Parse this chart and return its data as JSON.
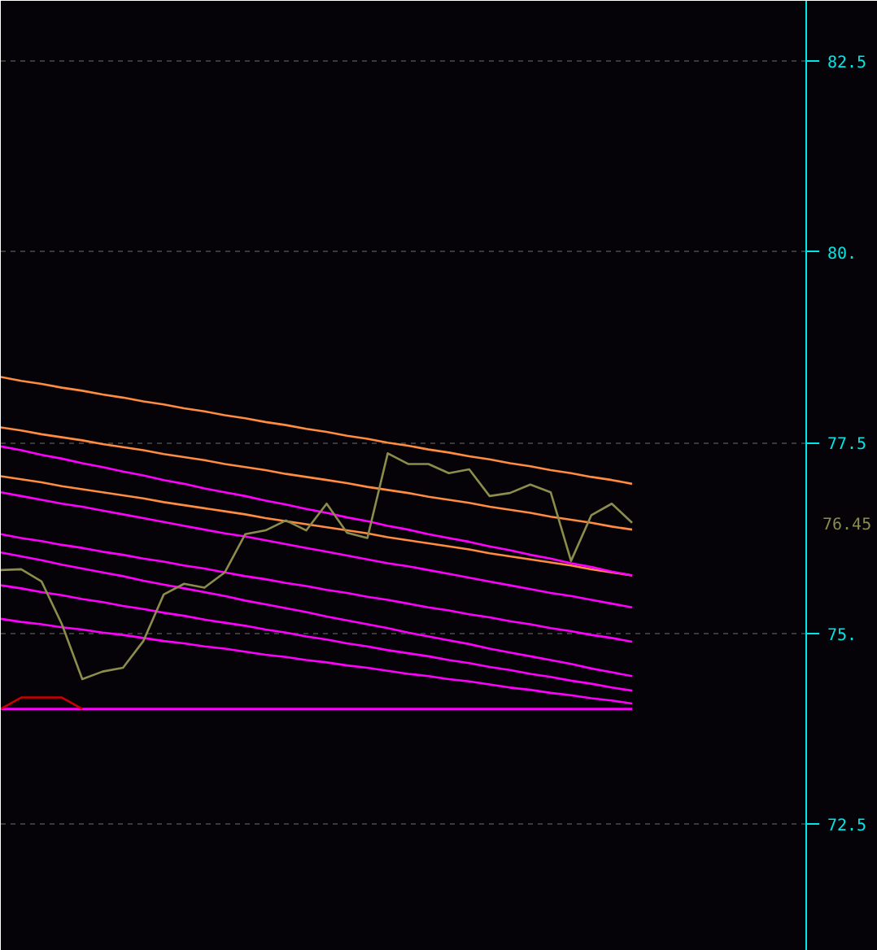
{
  "chart_data": {
    "type": "line",
    "categories": [
      null,
      null,
      null,
      null,
      null,
      null,
      null,
      null,
      null,
      null,
      null,
      null,
      null,
      null,
      null,
      null,
      null,
      null,
      null,
      null,
      null,
      null,
      null,
      null,
      null,
      null,
      null,
      null,
      null,
      null,
      null,
      null
    ],
    "ylim": [
      70.84,
      83.29
    ],
    "yticks": [
      72.5,
      {
        "value": 75,
        "label": "75."
      },
      77.5,
      {
        "value": 80,
        "label": "80."
      },
      82.5
    ],
    "tick_labels": "y",
    "grid": "y",
    "annotations": [
      "76.45"
    ],
    "series": [
      {
        "color": "#ff8c40",
        "values": [
          78.36,
          78.31,
          78.27,
          78.22,
          78.18,
          78.13,
          78.09,
          78.04,
          78.0,
          77.95,
          77.91,
          77.86,
          77.82,
          77.77,
          77.73,
          77.68,
          77.64,
          77.59,
          77.55,
          77.5,
          77.46,
          77.41,
          77.37,
          77.32,
          77.28,
          77.23,
          77.19,
          77.14,
          77.1,
          77.05,
          77.01,
          76.96
        ]
      },
      {
        "color": "#ff8c40",
        "values": [
          77.7,
          77.66,
          77.61,
          77.57,
          77.53,
          77.48,
          77.44,
          77.4,
          77.35,
          77.31,
          77.27,
          77.22,
          77.18,
          77.14,
          77.09,
          77.05,
          77.01,
          76.97,
          76.92,
          76.88,
          76.84,
          76.79,
          76.75,
          76.71,
          76.66,
          76.62,
          76.58,
          76.53,
          76.49,
          76.45,
          76.4,
          76.36
        ]
      },
      {
        "color": "#ff8c40",
        "values": [
          77.06,
          77.02,
          76.98,
          76.93,
          76.89,
          76.85,
          76.81,
          76.77,
          76.72,
          76.68,
          76.64,
          76.6,
          76.56,
          76.51,
          76.47,
          76.43,
          76.39,
          76.35,
          76.31,
          76.26,
          76.22,
          76.18,
          76.14,
          76.1,
          76.05,
          76.01,
          75.97,
          75.93,
          75.89,
          75.84,
          75.8,
          75.76
        ]
      },
      {
        "color": "#ff00ff",
        "values": [
          77.45,
          77.4,
          77.34,
          77.29,
          77.23,
          77.18,
          77.12,
          77.07,
          77.01,
          76.96,
          76.9,
          76.85,
          76.8,
          76.74,
          76.69,
          76.63,
          76.58,
          76.52,
          76.47,
          76.41,
          76.36,
          76.3,
          76.25,
          76.2,
          76.14,
          76.09,
          76.03,
          75.98,
          75.92,
          75.87,
          75.81,
          75.76
        ]
      },
      {
        "color": "#ff00ff",
        "values": [
          76.85,
          76.8,
          76.75,
          76.7,
          76.66,
          76.61,
          76.56,
          76.51,
          76.46,
          76.41,
          76.36,
          76.31,
          76.27,
          76.22,
          76.17,
          76.12,
          76.07,
          76.02,
          75.97,
          75.92,
          75.88,
          75.83,
          75.78,
          75.73,
          75.68,
          75.63,
          75.58,
          75.53,
          75.49,
          75.44,
          75.39,
          75.34
        ]
      },
      {
        "color": "#ff00ff",
        "values": [
          76.3,
          76.25,
          76.21,
          76.16,
          76.12,
          76.07,
          76.03,
          75.98,
          75.94,
          75.89,
          75.85,
          75.8,
          75.75,
          75.71,
          75.66,
          75.62,
          75.57,
          75.53,
          75.48,
          75.44,
          75.39,
          75.34,
          75.3,
          75.25,
          75.21,
          75.16,
          75.12,
          75.07,
          75.03,
          74.98,
          74.94,
          74.89
        ]
      },
      {
        "color": "#ff00ff",
        "values": [
          76.06,
          76.01,
          75.96,
          75.9,
          75.85,
          75.8,
          75.75,
          75.69,
          75.64,
          75.59,
          75.54,
          75.49,
          75.43,
          75.38,
          75.33,
          75.28,
          75.22,
          75.17,
          75.12,
          75.07,
          75.01,
          74.96,
          74.91,
          74.86,
          74.8,
          74.75,
          74.7,
          74.65,
          74.6,
          74.54,
          74.49,
          74.44
        ]
      },
      {
        "color": "#ff00ff",
        "values": [
          75.63,
          75.59,
          75.54,
          75.5,
          75.45,
          75.41,
          75.36,
          75.32,
          75.27,
          75.23,
          75.18,
          75.14,
          75.1,
          75.05,
          75.01,
          74.96,
          74.92,
          74.87,
          74.83,
          74.78,
          74.74,
          74.7,
          74.65,
          74.61,
          74.56,
          74.52,
          74.47,
          74.43,
          74.38,
          74.34,
          74.29,
          74.25
        ]
      },
      {
        "color": "#ff00ff",
        "values": [
          75.19,
          75.15,
          75.12,
          75.08,
          75.05,
          75.01,
          74.98,
          74.94,
          74.9,
          74.87,
          74.83,
          74.8,
          74.76,
          74.72,
          74.69,
          74.65,
          74.62,
          74.58,
          74.55,
          74.51,
          74.47,
          74.44,
          74.4,
          74.37,
          74.33,
          74.29,
          74.26,
          74.22,
          74.19,
          74.15,
          74.12,
          74.08
        ]
      },
      {
        "color": "#ff00ff",
        "values": [
          74.01,
          74.01,
          74.01,
          74.01,
          74.01,
          74.01,
          74.01,
          74.01,
          74.01,
          74.01,
          74.01,
          74.01,
          74.01,
          74.01,
          74.01,
          74.01,
          74.01,
          74.01,
          74.01,
          74.01,
          74.01,
          74.01,
          74.01,
          74.01,
          74.01,
          74.01,
          74.01,
          74.01,
          74.01,
          74.01,
          74.01,
          74.01
        ]
      },
      {
        "color": "#cc0000",
        "values": [
          74.01,
          74.16,
          74.16,
          74.16,
          74.01,
          null,
          null,
          null,
          null,
          null,
          null,
          null,
          null,
          null,
          null,
          null,
          null,
          null,
          null,
          null,
          null,
          null,
          null,
          null,
          null,
          null,
          null,
          null,
          null,
          null,
          null,
          null
        ]
      },
      {
        "color": "#8c8c4c",
        "values": [
          75.83,
          75.84,
          75.68,
          75.12,
          74.4,
          74.5,
          74.55,
          74.9,
          75.51,
          75.65,
          75.6,
          75.8,
          76.3,
          76.35,
          76.48,
          76.35,
          76.7,
          76.32,
          76.25,
          77.36,
          77.22,
          77.22,
          77.1,
          77.15,
          76.8,
          76.84,
          76.95,
          76.85,
          75.95,
          76.55,
          76.7,
          76.45
        ]
      }
    ]
  }
}
